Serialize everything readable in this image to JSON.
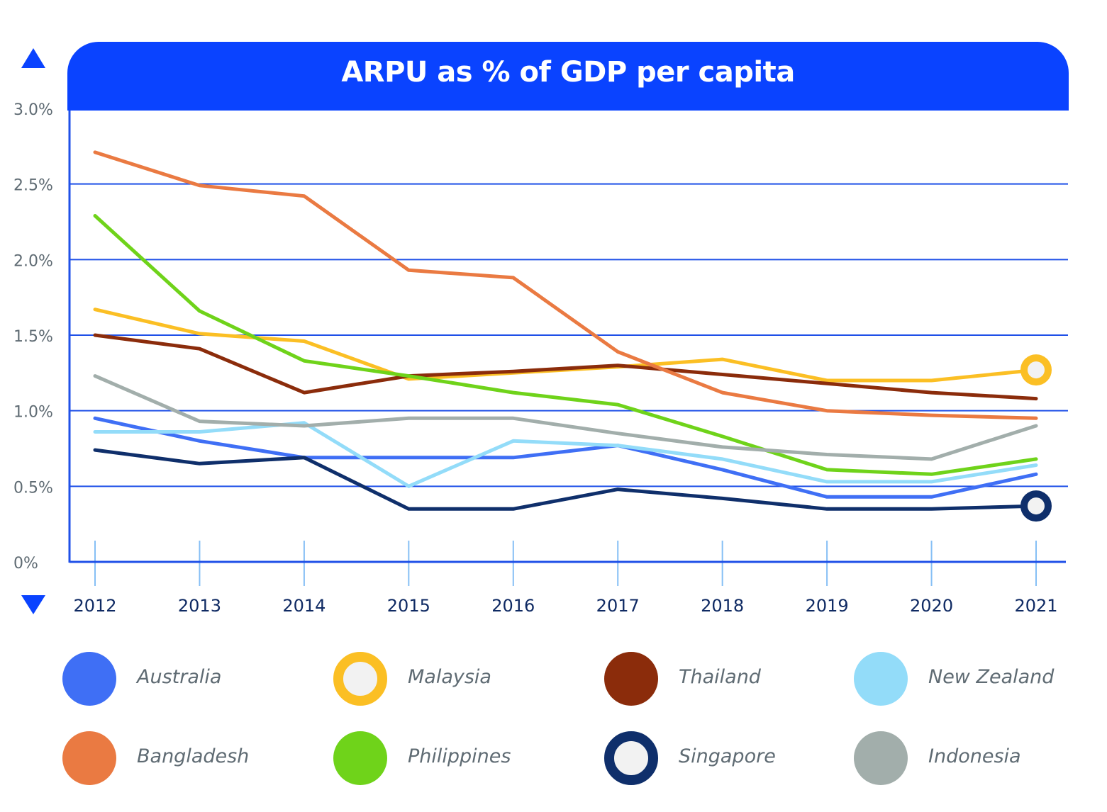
{
  "chart_data": {
    "type": "line",
    "title": "ARPU as % of GDP per capita",
    "xlabel": "",
    "ylabel": "",
    "x": [
      "2012",
      "2013",
      "2014",
      "2015",
      "2016",
      "2017",
      "2018",
      "2019",
      "2020",
      "2021"
    ],
    "ylim": [
      0,
      3.0
    ],
    "y_ticks": [
      {
        "value": 0,
        "label": "0%"
      },
      {
        "value": 0.5,
        "label": "0.5%"
      },
      {
        "value": 1.0,
        "label": "1.0%"
      },
      {
        "value": 1.5,
        "label": "1.5%"
      },
      {
        "value": 2.0,
        "label": "2.0%"
      },
      {
        "value": 2.5,
        "label": "2.5%"
      },
      {
        "value": 3.0,
        "label": "3.0%"
      }
    ],
    "grid": true,
    "legend_position": "bottom",
    "series": [
      {
        "name": "Australia",
        "color": "#3f6ff5",
        "ring": false,
        "values": [
          0.95,
          0.8,
          0.69,
          0.69,
          0.69,
          0.77,
          0.61,
          0.43,
          0.43,
          0.58
        ]
      },
      {
        "name": "Malaysia",
        "color": "#fbbf24",
        "ring": true,
        "values": [
          1.67,
          1.51,
          1.46,
          1.21,
          1.25,
          1.29,
          1.34,
          1.2,
          1.2,
          1.27
        ]
      },
      {
        "name": "Thailand",
        "color": "#8b2c0b",
        "ring": false,
        "values": [
          1.5,
          1.41,
          1.12,
          1.23,
          1.26,
          1.3,
          1.24,
          1.18,
          1.12,
          1.08
        ]
      },
      {
        "name": "New Zealand",
        "color": "#93dcf9",
        "ring": false,
        "values": [
          0.86,
          0.86,
          0.92,
          0.5,
          0.8,
          0.77,
          0.68,
          0.53,
          0.53,
          0.64
        ]
      },
      {
        "name": "Bangladesh",
        "color": "#ea7a42",
        "ring": false,
        "values": [
          2.71,
          2.49,
          2.42,
          1.93,
          1.88,
          1.39,
          1.12,
          1.0,
          0.97,
          0.95
        ]
      },
      {
        "name": "Philippines",
        "color": "#6fd31a",
        "ring": false,
        "values": [
          2.29,
          1.66,
          1.33,
          1.23,
          1.12,
          1.04,
          0.83,
          0.61,
          0.58,
          0.68
        ]
      },
      {
        "name": "Singapore",
        "color": "#0f2f6b",
        "ring": true,
        "values": [
          0.74,
          0.65,
          0.69,
          0.35,
          0.35,
          0.48,
          0.42,
          0.35,
          0.35,
          0.37
        ]
      },
      {
        "name": "Indonesia",
        "color": "#a2aeab",
        "ring": false,
        "values": [
          1.23,
          0.93,
          0.9,
          0.95,
          0.95,
          0.85,
          0.76,
          0.71,
          0.68,
          0.9
        ]
      }
    ]
  },
  "colors": {
    "accent": "#0a43ff",
    "axis": "#1f50e8",
    "tick_label": "#5f6b73",
    "year_label": "#0f2a63"
  },
  "icons": {
    "top_arrow": "triangle-up-icon",
    "bottom_arrow": "triangle-down-icon"
  }
}
